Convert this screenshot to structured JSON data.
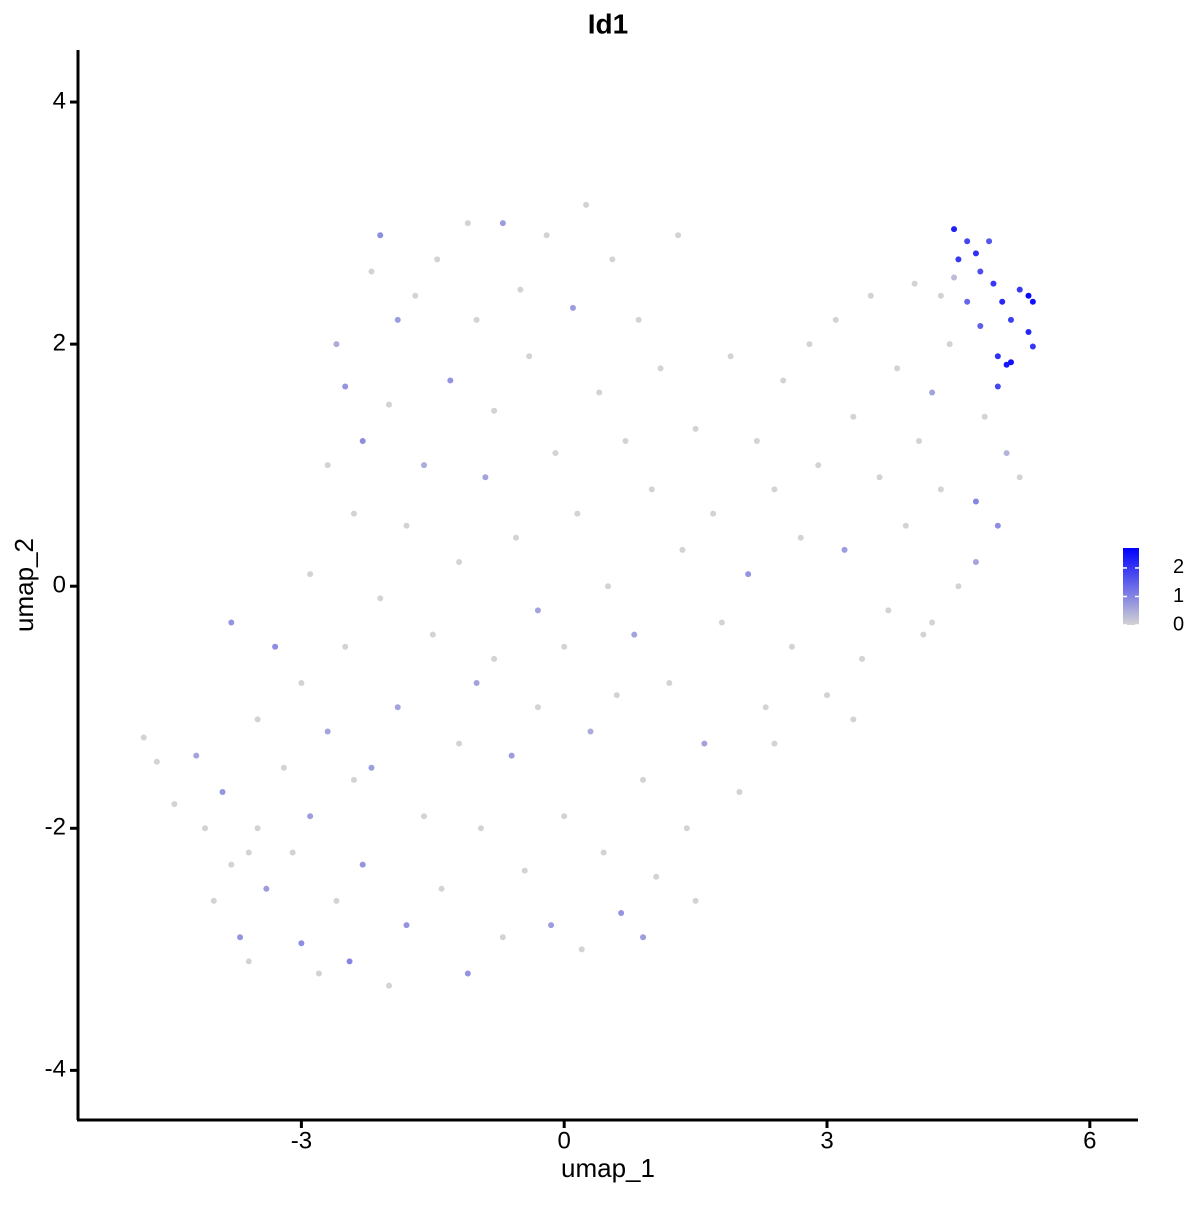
{
  "chart_data": {
    "type": "scatter",
    "title": "Id1",
    "xlabel": "umap_1",
    "ylabel": "umap_2",
    "x": [
      -4.8,
      -4.65,
      -4.45,
      -4.2,
      -4.1,
      -4.0,
      -3.9,
      -3.8,
      -3.7,
      -3.6,
      -3.5,
      -3.5,
      -3.4,
      -3.3,
      -3.2,
      -3.1,
      -3.0,
      -3.0,
      -2.9,
      -2.9,
      -2.8,
      -2.7,
      -2.7,
      -2.6,
      -2.6,
      -2.5,
      -2.5,
      -2.45,
      -2.4,
      -2.4,
      -2.3,
      -2.3,
      -2.2,
      -2.1,
      -2.1,
      -2.0,
      -2.0,
      -1.9,
      -1.9,
      -1.8,
      -1.8,
      -1.7,
      -1.6,
      -1.6,
      -1.5,
      -1.45,
      -1.4,
      -1.3,
      -1.2,
      -1.2,
      -1.1,
      -1.1,
      -1.0,
      -0.95,
      -0.9,
      -0.8,
      -0.8,
      -0.7,
      -0.7,
      -0.6,
      -0.55,
      -0.5,
      -0.45,
      -0.4,
      -0.3,
      -0.3,
      -0.2,
      -0.15,
      -0.1,
      0.0,
      0.0,
      0.1,
      0.15,
      0.2,
      0.25,
      0.3,
      0.4,
      0.45,
      0.5,
      0.55,
      0.6,
      0.65,
      0.7,
      0.8,
      0.85,
      0.9,
      1.0,
      1.05,
      1.1,
      1.2,
      1.3,
      1.35,
      1.4,
      1.5,
      1.6,
      1.7,
      1.8,
      1.9,
      2.0,
      2.1,
      2.2,
      2.3,
      2.4,
      2.5,
      2.6,
      2.7,
      2.8,
      2.9,
      3.0,
      3.1,
      3.2,
      3.3,
      3.4,
      3.5,
      3.6,
      3.7,
      3.8,
      3.9,
      4.0,
      4.05,
      4.1,
      4.2,
      4.3,
      4.4,
      3.3,
      2.4,
      1.5,
      -3.8,
      -2.2,
      -1.0,
      0.9,
      -3.6,
      4.45,
      4.5,
      4.6,
      4.7,
      4.75,
      4.85,
      4.9,
      5.0,
      5.1,
      5.2,
      5.3,
      5.35,
      5.3,
      5.35,
      4.95,
      5.05,
      5.1,
      4.95,
      4.75,
      4.6,
      4.45,
      4.3,
      4.8,
      5.05,
      5.2,
      4.7,
      4.95,
      4.7,
      4.5,
      4.2
    ],
    "y": [
      -1.25,
      -1.45,
      -1.8,
      -1.4,
      -2.0,
      -2.6,
      -1.7,
      -2.3,
      -2.9,
      -3.1,
      -1.1,
      -2.0,
      -2.5,
      -0.5,
      -1.5,
      -2.2,
      -2.95,
      -0.8,
      0.1,
      -1.9,
      -3.2,
      1.0,
      -1.2,
      2.0,
      -2.6,
      1.65,
      -0.5,
      -3.1,
      0.6,
      -1.6,
      1.2,
      -2.3,
      2.6,
      2.9,
      -0.1,
      -3.3,
      1.5,
      -1.0,
      2.2,
      -2.8,
      0.5,
      2.4,
      -1.9,
      1.0,
      -0.4,
      2.7,
      -2.5,
      1.7,
      0.2,
      -1.3,
      3.0,
      -3.2,
      2.2,
      -2.0,
      0.9,
      -0.6,
      1.45,
      3.0,
      -2.9,
      -1.4,
      0.4,
      2.45,
      -2.35,
      1.9,
      -0.2,
      -1.0,
      2.9,
      -2.8,
      1.1,
      -0.5,
      -1.9,
      2.3,
      0.6,
      -3.0,
      3.15,
      -1.2,
      1.6,
      -2.2,
      0.0,
      2.7,
      -0.9,
      -2.7,
      1.2,
      -0.4,
      2.2,
      -1.6,
      0.8,
      -2.4,
      1.8,
      -0.8,
      2.9,
      0.3,
      -2.0,
      1.3,
      -1.3,
      0.6,
      -0.3,
      1.9,
      -1.7,
      0.1,
      1.2,
      -1.0,
      0.8,
      1.7,
      -0.5,
      0.4,
      2.0,
      1.0,
      -0.9,
      2.2,
      0.3,
      1.4,
      -0.6,
      2.4,
      0.9,
      -0.2,
      1.8,
      0.5,
      2.5,
      1.2,
      -0.4,
      1.6,
      0.8,
      2.0,
      -1.1,
      -1.3,
      -2.6,
      -0.3,
      -1.5,
      -0.8,
      -2.9,
      -2.2,
      2.95,
      2.7,
      2.85,
      2.75,
      2.6,
      2.85,
      2.5,
      2.35,
      2.2,
      2.45,
      2.4,
      2.35,
      2.1,
      1.98,
      1.9,
      1.83,
      1.85,
      1.65,
      2.15,
      2.35,
      2.55,
      2.4,
      1.4,
      1.1,
      0.9,
      0.7,
      0.5,
      0.2,
      0,
      -0.3
    ],
    "values": [
      0,
      0,
      0,
      0.6,
      0,
      0,
      0.8,
      0,
      0.8,
      0,
      0,
      0,
      0.7,
      0.9,
      0,
      0,
      0.9,
      0,
      0,
      0.7,
      0,
      0,
      0.6,
      0.5,
      0,
      0.8,
      0,
      1.0,
      0,
      0,
      0.9,
      0.8,
      0,
      0.9,
      0,
      0,
      0,
      0.6,
      0.7,
      0.8,
      0,
      0,
      0,
      0.5,
      0,
      0,
      0,
      0.8,
      0,
      0,
      0,
      0.8,
      0,
      0,
      0.6,
      0,
      0,
      0.7,
      0,
      0.7,
      0,
      0,
      0,
      0,
      0.6,
      0,
      0,
      0.7,
      0,
      0,
      0,
      0.7,
      0,
      0,
      0,
      0.5,
      0,
      0,
      0,
      0,
      0,
      0.8,
      0,
      0.6,
      0,
      0,
      0,
      0,
      0,
      0,
      0,
      0,
      0,
      0,
      0.6,
      0,
      0,
      0,
      0,
      0.8,
      0,
      0,
      0,
      0,
      0,
      0,
      0,
      0,
      0,
      0,
      0.7,
      0,
      0,
      0,
      0,
      0,
      0,
      0,
      0,
      0,
      0,
      0.6,
      0,
      0,
      0,
      0,
      0,
      0.8,
      0.7,
      0.6,
      0.7,
      0,
      2.3,
      2.0,
      1.8,
      2.1,
      1.7,
      1.6,
      2.0,
      2.2,
      1.9,
      2.0,
      2.6,
      2.5,
      2.2,
      2.0,
      2.1,
      2.4,
      2.5,
      1.8,
      1.5,
      1.4,
      0.3,
      0,
      0,
      0.4,
      0,
      1.0,
      0.9,
      0.6,
      0,
      0
    ],
    "xlim": [
      -5.55,
      6.55
    ],
    "xticks": [
      -3,
      0,
      3,
      6
    ],
    "ylim": [
      -4.41,
      4.43
    ],
    "yticks": [
      -4,
      -2,
      0,
      2,
      4
    ],
    "color_low": "#d3d3d3",
    "color_high": "#0000ff",
    "colorbar_lim": [
      0,
      2.7
    ],
    "colorbar_ticks": [
      0,
      1,
      2
    ]
  }
}
